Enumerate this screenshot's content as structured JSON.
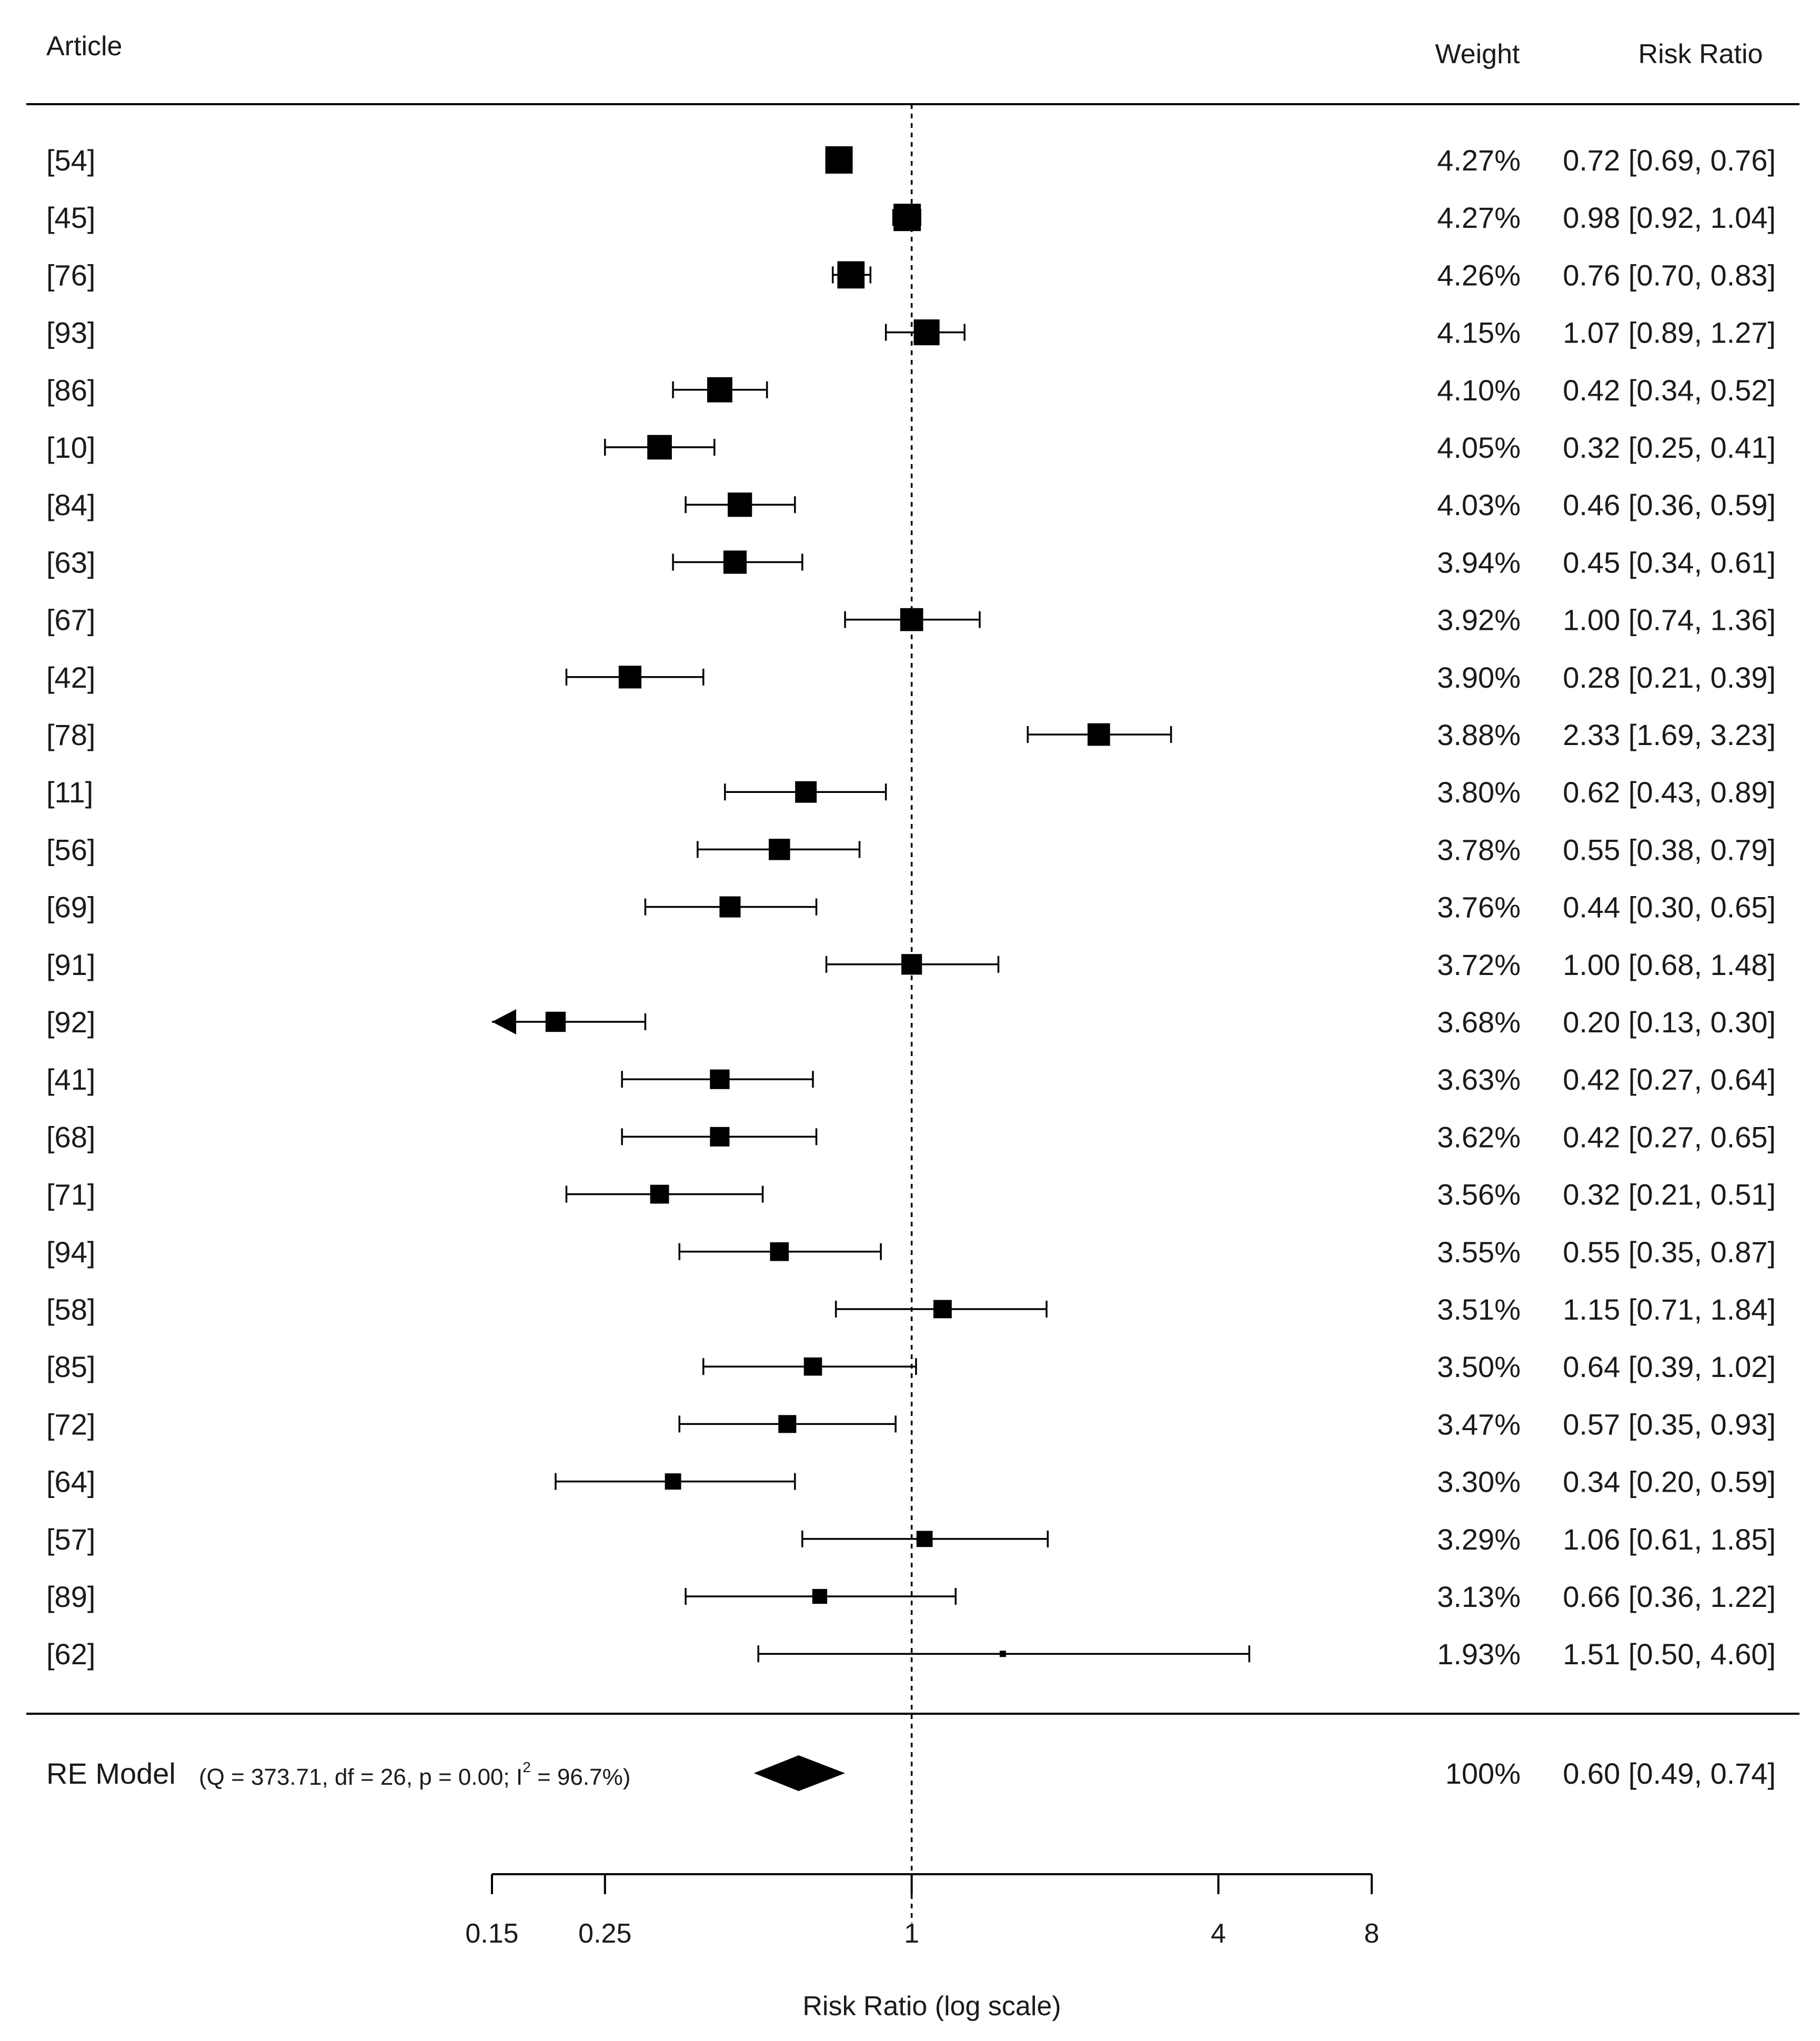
{
  "chart_data": {
    "type": "forest",
    "headers": {
      "article": "Article",
      "weight": "Weight",
      "ratio": "Risk Ratio"
    },
    "studies": [
      {
        "label": "[54]",
        "weight": "4.27%",
        "rr": 0.72,
        "lo": 0.69,
        "hi": 0.76,
        "ci_text": "0.72 [0.69, 0.76]"
      },
      {
        "label": "[45]",
        "weight": "4.27%",
        "rr": 0.98,
        "lo": 0.92,
        "hi": 1.04,
        "ci_text": "0.98 [0.92, 1.04]"
      },
      {
        "label": "[76]",
        "weight": "4.26%",
        "rr": 0.76,
        "lo": 0.7,
        "hi": 0.83,
        "ci_text": "0.76 [0.70, 0.83]"
      },
      {
        "label": "[93]",
        "weight": "4.15%",
        "rr": 1.07,
        "lo": 0.89,
        "hi": 1.27,
        "ci_text": "1.07 [0.89, 1.27]"
      },
      {
        "label": "[86]",
        "weight": "4.10%",
        "rr": 0.42,
        "lo": 0.34,
        "hi": 0.52,
        "ci_text": "0.42 [0.34, 0.52]"
      },
      {
        "label": "[10]",
        "weight": "4.05%",
        "rr": 0.32,
        "lo": 0.25,
        "hi": 0.41,
        "ci_text": "0.32 [0.25, 0.41]"
      },
      {
        "label": "[84]",
        "weight": "4.03%",
        "rr": 0.46,
        "lo": 0.36,
        "hi": 0.59,
        "ci_text": "0.46 [0.36, 0.59]"
      },
      {
        "label": "[63]",
        "weight": "3.94%",
        "rr": 0.45,
        "lo": 0.34,
        "hi": 0.61,
        "ci_text": "0.45 [0.34, 0.61]"
      },
      {
        "label": "[67]",
        "weight": "3.92%",
        "rr": 1.0,
        "lo": 0.74,
        "hi": 1.36,
        "ci_text": "1.00 [0.74, 1.36]"
      },
      {
        "label": "[42]",
        "weight": "3.90%",
        "rr": 0.28,
        "lo": 0.21,
        "hi": 0.39,
        "ci_text": "0.28 [0.21, 0.39]"
      },
      {
        "label": "[78]",
        "weight": "3.88%",
        "rr": 2.33,
        "lo": 1.69,
        "hi": 3.23,
        "ci_text": "2.33 [1.69, 3.23]"
      },
      {
        "label": "[11]",
        "weight": "3.80%",
        "rr": 0.62,
        "lo": 0.43,
        "hi": 0.89,
        "ci_text": "0.62 [0.43, 0.89]"
      },
      {
        "label": "[56]",
        "weight": "3.78%",
        "rr": 0.55,
        "lo": 0.38,
        "hi": 0.79,
        "ci_text": "0.55 [0.38, 0.79]"
      },
      {
        "label": "[69]",
        "weight": "3.76%",
        "rr": 0.44,
        "lo": 0.3,
        "hi": 0.65,
        "ci_text": "0.44 [0.30, 0.65]"
      },
      {
        "label": "[91]",
        "weight": "3.72%",
        "rr": 1.0,
        "lo": 0.68,
        "hi": 1.48,
        "ci_text": "1.00 [0.68, 1.48]"
      },
      {
        "label": "[92]",
        "weight": "3.68%",
        "rr": 0.2,
        "lo": 0.13,
        "hi": 0.3,
        "ci_text": "0.20 [0.13, 0.30]"
      },
      {
        "label": "[41]",
        "weight": "3.63%",
        "rr": 0.42,
        "lo": 0.27,
        "hi": 0.64,
        "ci_text": "0.42 [0.27, 0.64]"
      },
      {
        "label": "[68]",
        "weight": "3.62%",
        "rr": 0.42,
        "lo": 0.27,
        "hi": 0.65,
        "ci_text": "0.42 [0.27, 0.65]"
      },
      {
        "label": "[71]",
        "weight": "3.56%",
        "rr": 0.32,
        "lo": 0.21,
        "hi": 0.51,
        "ci_text": "0.32 [0.21, 0.51]"
      },
      {
        "label": "[94]",
        "weight": "3.55%",
        "rr": 0.55,
        "lo": 0.35,
        "hi": 0.87,
        "ci_text": "0.55 [0.35, 0.87]"
      },
      {
        "label": "[58]",
        "weight": "3.51%",
        "rr": 1.15,
        "lo": 0.71,
        "hi": 1.84,
        "ci_text": "1.15 [0.71, 1.84]"
      },
      {
        "label": "[85]",
        "weight": "3.50%",
        "rr": 0.64,
        "lo": 0.39,
        "hi": 1.02,
        "ci_text": "0.64 [0.39, 1.02]"
      },
      {
        "label": "[72]",
        "weight": "3.47%",
        "rr": 0.57,
        "lo": 0.35,
        "hi": 0.93,
        "ci_text": "0.57 [0.35, 0.93]"
      },
      {
        "label": "[64]",
        "weight": "3.30%",
        "rr": 0.34,
        "lo": 0.2,
        "hi": 0.59,
        "ci_text": "0.34 [0.20, 0.59]"
      },
      {
        "label": "[57]",
        "weight": "3.29%",
        "rr": 1.06,
        "lo": 0.61,
        "hi": 1.85,
        "ci_text": "1.06 [0.61, 1.85]"
      },
      {
        "label": "[89]",
        "weight": "3.13%",
        "rr": 0.66,
        "lo": 0.36,
        "hi": 1.22,
        "ci_text": "0.66 [0.36, 1.22]"
      },
      {
        "label": "[62]",
        "weight": "1.93%",
        "rr": 1.51,
        "lo": 0.5,
        "hi": 4.6,
        "ci_text": "1.51 [0.50, 4.60]"
      }
    ],
    "summary": {
      "label": "RE Model",
      "stats_prefix": "(Q = 373.71, df = 26, p = 0.00; I",
      "stats_sup": "2",
      "stats_suffix": " = 96.7%)",
      "weight": "100%",
      "rr": 0.6,
      "lo": 0.49,
      "hi": 0.74,
      "ci_text": "0.60 [0.49, 0.74]"
    },
    "x_axis": {
      "label": "Risk Ratio (log scale)",
      "scale": "log",
      "range": [
        0.15,
        8
      ],
      "ticks": [
        0.15,
        0.25,
        1,
        4,
        8
      ],
      "tick_labels": [
        "0.15",
        "0.25",
        "1",
        "4",
        "8"
      ]
    },
    "reference_line": 1
  }
}
